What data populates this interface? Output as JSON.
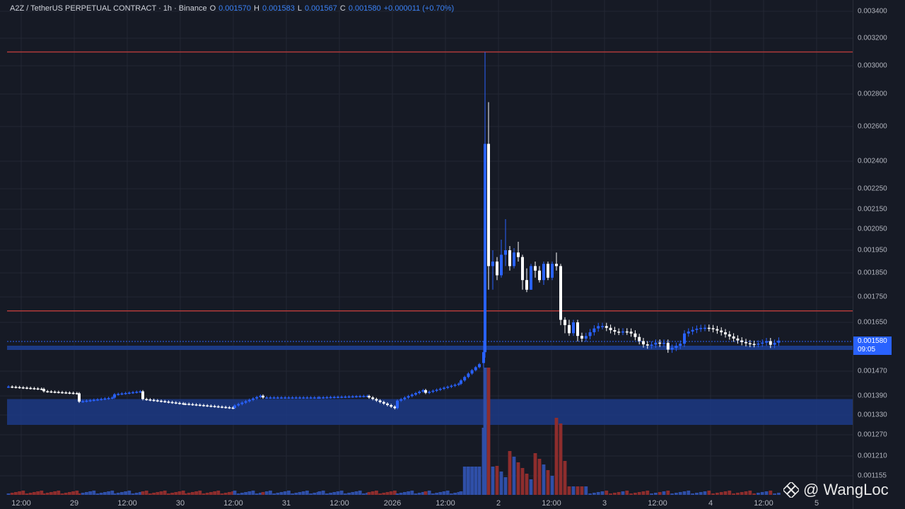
{
  "header": {
    "symbol": "A2Z / TetherUS PERPETUAL CONTRACT · 1h · Binance",
    "o_label": "O",
    "o_val": "0.001570",
    "h_label": "H",
    "h_val": "0.001583",
    "l_label": "L",
    "l_val": "0.001567",
    "c_label": "C",
    "c_val": "0.001580",
    "change": "+0.000011 (+0.70%)"
  },
  "price_axis": {
    "ticks": [
      "0.003400",
      "0.003200",
      "0.003000",
      "0.002800",
      "0.002600",
      "0.002400",
      "0.002250",
      "0.002150",
      "0.002050",
      "0.001950",
      "0.001850",
      "0.001750",
      "0.001650",
      "0.001470",
      "0.001390",
      "0.001330",
      "0.001270",
      "0.001210",
      "0.001155"
    ],
    "current_price": "0.001580",
    "countdown": "09:05"
  },
  "time_axis": {
    "labels": [
      "12:00",
      "29",
      "12:00",
      "30",
      "12:00",
      "31",
      "12:00",
      "2026",
      "12:00",
      "2",
      "12:00",
      "3",
      "12:00",
      "4",
      "12:00",
      "5"
    ]
  },
  "chart_data": {
    "type": "candlestick",
    "timeframe": "1h",
    "last": {
      "open": 0.00157,
      "high": 0.001583,
      "low": 0.001567,
      "close": 0.00158
    },
    "horizontal_lines": [
      0.0031,
      0.001695
    ],
    "support_zone": [
      0.0013,
      0.00138
    ],
    "spike_high": 0.0031,
    "colors": {
      "up": "#2962ff",
      "down": "#ffffff",
      "vol_up": "#2f4fa8",
      "vol_down": "#8e2d2d",
      "line": "#b03a3a",
      "zone": "#1c3a85"
    }
  },
  "watermark": {
    "text": "@ WangLoc",
    "logo": "diamond-logo-icon"
  }
}
